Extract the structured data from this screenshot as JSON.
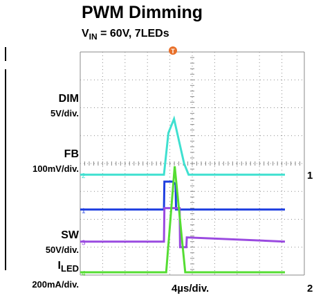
{
  "title": "PWM Dimming",
  "subtitle": {
    "prefix": "V",
    "sub": "IN",
    "rest": " = 60V, 7LEDs"
  },
  "chart_data": {
    "type": "line",
    "title": "PWM Dimming",
    "subtitle": "VIN = 60V, 7LEDs",
    "x_scale": "4µs/div.",
    "x_divisions": 10,
    "y_divisions": 8,
    "grid": true,
    "trigger_marker": "T",
    "series": [
      {
        "name": "DIM",
        "scale": "5V/div.",
        "channel": "1",
        "color": "#1f3fe0",
        "offset_div": 2.35,
        "x": [
          -5,
          -0.4,
          -0.38,
          0,
          0.12,
          0.14,
          5
        ],
        "y": [
          0,
          0,
          1,
          1,
          0.9,
          0,
          0
        ]
      },
      {
        "name": "FB",
        "scale": "100mV/div.",
        "channel": "2",
        "color": "#3fe0d0",
        "offset_div": 3.6,
        "x": [
          -5,
          -0.4,
          -0.2,
          0.05,
          0.5,
          0.7,
          5
        ],
        "y": [
          0,
          0,
          1.5,
          2.0,
          0.4,
          0,
          0
        ]
      },
      {
        "name": "SW",
        "scale": "50V/div.",
        "channel": "3",
        "color": "#9a4ae0",
        "offset_div": 1.2,
        "x": [
          -5,
          -0.4,
          -0.38,
          0.3,
          0.32,
          0.6,
          0.62,
          5
        ],
        "y": [
          0,
          0,
          1.2,
          1.2,
          -0.2,
          -0.2,
          0.15,
          0
        ]
      },
      {
        "name": "LED",
        "label_prefix": "I",
        "label_sub": "LED",
        "scale": "200mA/div.",
        "channel": "4",
        "color": "#55dd33",
        "offset_div": 0.1,
        "x": [
          -5,
          -0.3,
          0.08,
          0.55,
          5
        ],
        "y": [
          0,
          0,
          3.8,
          0,
          0
        ]
      }
    ]
  },
  "edge_labels": [
    "1",
    "2"
  ]
}
